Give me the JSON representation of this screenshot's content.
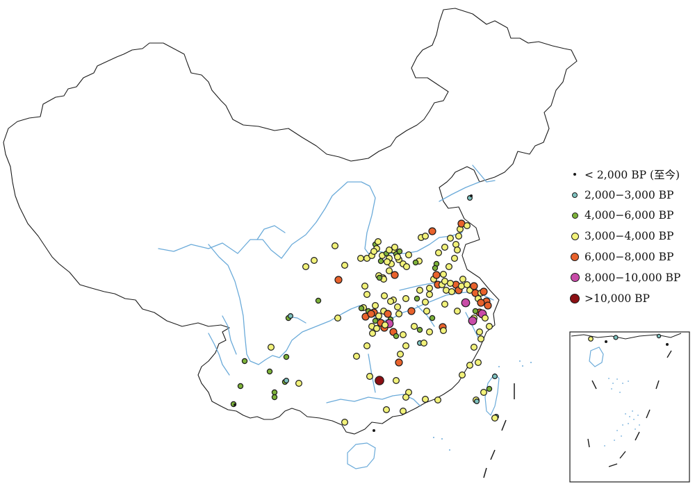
{
  "colors": {
    "river": "#6aaad9",
    "border": "#1a1a1a",
    "ocean_dots": "#6aaad9"
  },
  "legend": [
    {
      "label": "< 2,000 BP (至今)",
      "color": "#1a1a1a"
    },
    {
      "label": "2,000−3,000 BP",
      "color": "#7ec2bf"
    },
    {
      "label": "4,000−6,000 BP",
      "color": "#7db23a"
    },
    {
      "label": "3,000−4,000 BP",
      "color": "#f2f27a"
    },
    {
      "label": "6,000−8,000 BP",
      "color": "#e8622c"
    },
    {
      "label": "8,000−10,000 BP",
      "color": "#c84ca8"
    },
    {
      "label": ">10,000 BP",
      "color": "#8c1014"
    }
  ],
  "inset": {
    "label": ""
  }
}
